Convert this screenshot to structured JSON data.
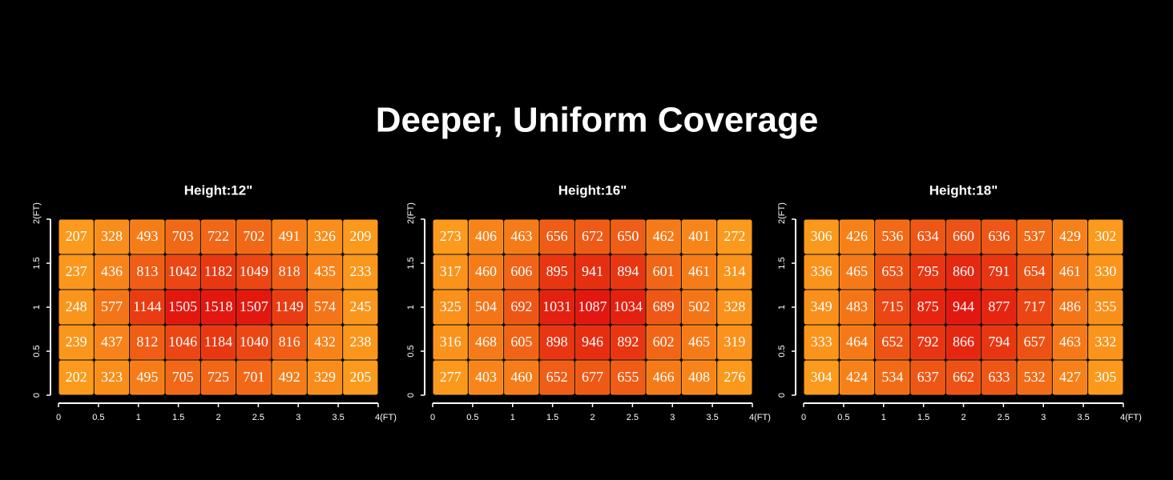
{
  "title": "Deeper, Uniform Coverage",
  "chart_data": [
    {
      "type": "heatmap",
      "title": "Height:12\"",
      "values": [
        [
          207,
          328,
          493,
          703,
          722,
          702,
          491,
          326,
          209
        ],
        [
          237,
          436,
          813,
          1042,
          1182,
          1049,
          818,
          435,
          233
        ],
        [
          248,
          577,
          1144,
          1505,
          1518,
          1507,
          1149,
          574,
          245
        ],
        [
          239,
          437,
          812,
          1046,
          1184,
          1040,
          816,
          432,
          238
        ],
        [
          202,
          323,
          495,
          705,
          725,
          701,
          492,
          329,
          205
        ]
      ],
      "xlim": [
        0,
        4
      ],
      "ylim": [
        0,
        2
      ],
      "xticks": [
        0,
        0.5,
        1,
        1.5,
        2,
        2.5,
        3,
        3.5,
        {
          "value": 4,
          "label": "4(FT)"
        }
      ],
      "yticks": [
        0,
        0.5,
        1,
        1.5,
        {
          "value": 2,
          "label": "2(FT)"
        }
      ],
      "color_scale": [
        "#fb9a1c",
        "#e2170f"
      ]
    },
    {
      "type": "heatmap",
      "title": "Height:16\"",
      "values": [
        [
          273,
          406,
          463,
          656,
          672,
          650,
          462,
          401,
          272
        ],
        [
          317,
          460,
          606,
          895,
          941,
          894,
          601,
          461,
          314
        ],
        [
          325,
          504,
          692,
          1031,
          1087,
          1034,
          689,
          502,
          328
        ],
        [
          316,
          468,
          605,
          898,
          946,
          892,
          602,
          465,
          319
        ],
        [
          277,
          403,
          460,
          652,
          677,
          655,
          466,
          408,
          276
        ]
      ],
      "xlim": [
        0,
        4
      ],
      "ylim": [
        0,
        2
      ],
      "xticks": [
        0,
        0.5,
        1,
        1.5,
        2,
        2.5,
        3,
        3.5,
        {
          "value": 4,
          "label": "4(FT)"
        }
      ],
      "yticks": [
        0,
        0.5,
        1,
        1.5,
        {
          "value": 2,
          "label": "2(FT)"
        }
      ],
      "color_scale": [
        "#fb9a1c",
        "#e2170f"
      ]
    },
    {
      "type": "heatmap",
      "title": "Height:18\"",
      "values": [
        [
          306,
          426,
          536,
          634,
          660,
          636,
          537,
          429,
          302
        ],
        [
          336,
          465,
          653,
          795,
          860,
          791,
          654,
          461,
          330
        ],
        [
          349,
          483,
          715,
          875,
          944,
          877,
          717,
          486,
          355
        ],
        [
          333,
          464,
          652,
          792,
          866,
          794,
          657,
          463,
          332
        ],
        [
          304,
          424,
          534,
          637,
          662,
          633,
          532,
          427,
          305
        ]
      ],
      "xlim": [
        0,
        4
      ],
      "ylim": [
        0,
        2
      ],
      "xticks": [
        0,
        0.5,
        1,
        1.5,
        2,
        2.5,
        3,
        3.5,
        {
          "value": 4,
          "label": "4(FT)"
        }
      ],
      "yticks": [
        0,
        0.5,
        1,
        1.5,
        {
          "value": 2,
          "label": "2(FT)"
        }
      ],
      "color_scale": [
        "#fb9a1c",
        "#e2170f"
      ]
    }
  ]
}
